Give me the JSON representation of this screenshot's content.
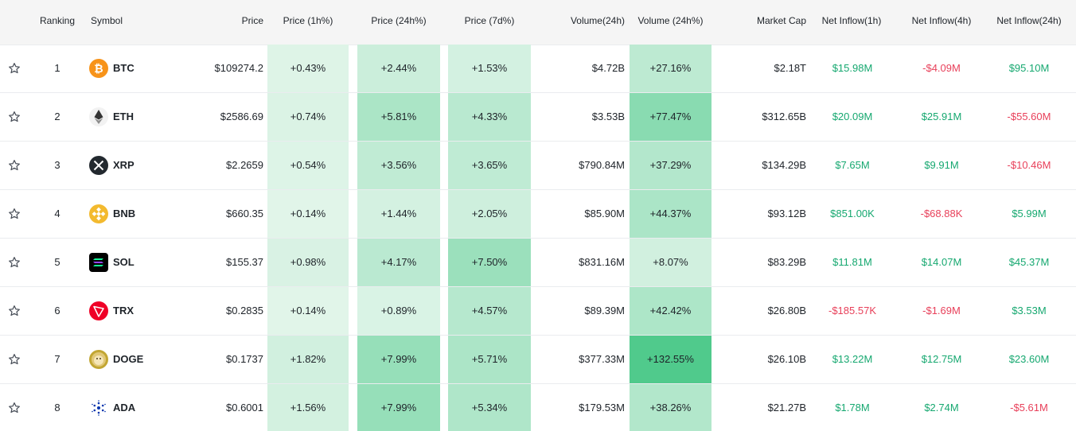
{
  "headers": {
    "ranking": "Ranking",
    "symbol": "Symbol",
    "price": "Price",
    "price_1h": "Price (1h%)",
    "price_24h": "Price (24h%)",
    "price_7d": "Price (7d%)",
    "volume_24h": "Volume(24h)",
    "volume_24h_pct": "Volume (24h%)",
    "market_cap": "Market Cap",
    "inflow_1h": "Net Inflow(1h)",
    "inflow_4h": "Net Inflow(4h)",
    "inflow_24h": "Net Inflow(24h)"
  },
  "colors": {
    "positive": "#16a870",
    "negative": "#e8405a",
    "header_bg": "#f5f5f5"
  },
  "rows": [
    {
      "rank": "1",
      "symbol": "BTC",
      "icon": "bitcoin-icon",
      "price": "$109274.2",
      "p1h": "+0.43%",
      "p24h": "+2.44%",
      "p7d": "+1.53%",
      "vol": "$4.72B",
      "volpct": "+27.16%",
      "mcap": "$2.18T",
      "in1h": "$15.98M",
      "in4h": "-$4.09M",
      "in24h": "$95.10M"
    },
    {
      "rank": "2",
      "symbol": "ETH",
      "icon": "ethereum-icon",
      "price": "$2586.69",
      "p1h": "+0.74%",
      "p24h": "+5.81%",
      "p7d": "+4.33%",
      "vol": "$3.53B",
      "volpct": "+77.47%",
      "mcap": "$312.65B",
      "in1h": "$20.09M",
      "in4h": "$25.91M",
      "in24h": "-$55.60M"
    },
    {
      "rank": "3",
      "symbol": "XRP",
      "icon": "xrp-icon",
      "price": "$2.2659",
      "p1h": "+0.54%",
      "p24h": "+3.56%",
      "p7d": "+3.65%",
      "vol": "$790.84M",
      "volpct": "+37.29%",
      "mcap": "$134.29B",
      "in1h": "$7.65M",
      "in4h": "$9.91M",
      "in24h": "-$10.46M"
    },
    {
      "rank": "4",
      "symbol": "BNB",
      "icon": "bnb-icon",
      "price": "$660.35",
      "p1h": "+0.14%",
      "p24h": "+1.44%",
      "p7d": "+2.05%",
      "vol": "$85.90M",
      "volpct": "+44.37%",
      "mcap": "$93.12B",
      "in1h": "$851.00K",
      "in4h": "-$68.88K",
      "in24h": "$5.99M"
    },
    {
      "rank": "5",
      "symbol": "SOL",
      "icon": "solana-icon",
      "price": "$155.37",
      "p1h": "+0.98%",
      "p24h": "+4.17%",
      "p7d": "+7.50%",
      "vol": "$831.16M",
      "volpct": "+8.07%",
      "mcap": "$83.29B",
      "in1h": "$11.81M",
      "in4h": "$14.07M",
      "in24h": "$45.37M"
    },
    {
      "rank": "6",
      "symbol": "TRX",
      "icon": "tron-icon",
      "price": "$0.2835",
      "p1h": "+0.14%",
      "p24h": "+0.89%",
      "p7d": "+4.57%",
      "vol": "$89.39M",
      "volpct": "+42.42%",
      "mcap": "$26.80B",
      "in1h": "-$185.57K",
      "in4h": "-$1.69M",
      "in24h": "$3.53M"
    },
    {
      "rank": "7",
      "symbol": "DOGE",
      "icon": "dogecoin-icon",
      "price": "$0.1737",
      "p1h": "+1.82%",
      "p24h": "+7.99%",
      "p7d": "+5.71%",
      "vol": "$377.33M",
      "volpct": "+132.55%",
      "mcap": "$26.10B",
      "in1h": "$13.22M",
      "in4h": "$12.75M",
      "in24h": "$23.60M"
    },
    {
      "rank": "8",
      "symbol": "ADA",
      "icon": "cardano-icon",
      "price": "$0.6001",
      "p1h": "+1.56%",
      "p24h": "+7.99%",
      "p7d": "+5.34%",
      "vol": "$179.53M",
      "volpct": "+38.26%",
      "mcap": "$21.27B",
      "in1h": "$1.78M",
      "in4h": "$2.74M",
      "in24h": "-$5.61M"
    }
  ]
}
